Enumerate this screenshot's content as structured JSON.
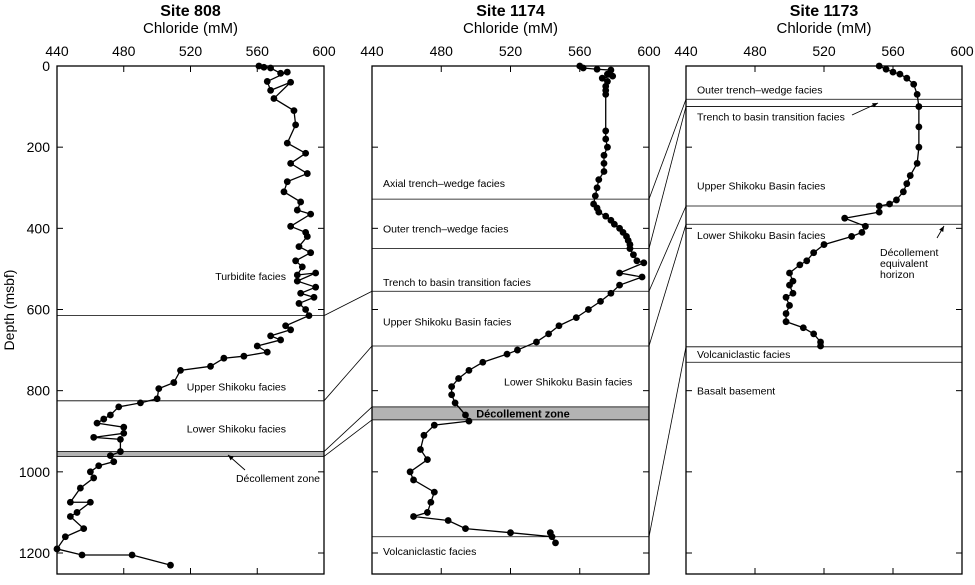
{
  "figure": {
    "ylabel": "Depth (msbf)",
    "y_ticks": [
      0,
      200,
      400,
      600,
      800,
      1000,
      1200
    ],
    "x_ticks": [
      440,
      480,
      520,
      560,
      600
    ]
  },
  "chart_data": [
    {
      "type": "line",
      "title": "Site 808",
      "xlabel": "Chloride (mM)",
      "ylabel": "Depth (msbf)",
      "xlim": [
        440,
        600
      ],
      "ylim": [
        1250,
        0
      ],
      "series": [
        {
          "values": [
            [
              561,
              0
            ],
            [
              564,
              3
            ],
            [
              568,
              5
            ],
            [
              574,
              18
            ],
            [
              578,
              15
            ],
            [
              566,
              38
            ],
            [
              568,
              60
            ],
            [
              580,
              40
            ],
            [
              570,
              80
            ],
            [
              582,
              110
            ],
            [
              583,
              145
            ],
            [
              578,
              190
            ],
            [
              589,
              215
            ],
            [
              580,
              240
            ],
            [
              590,
              265
            ],
            [
              578,
              285
            ],
            [
              576,
              310
            ],
            [
              586,
              335
            ],
            [
              584,
              355
            ],
            [
              592,
              365
            ],
            [
              580,
              395
            ],
            [
              589,
              410
            ],
            [
              590,
              420
            ],
            [
              585,
              445
            ],
            [
              592,
              460
            ],
            [
              583,
              480
            ],
            [
              587,
              495
            ],
            [
              584,
              515
            ],
            [
              595,
              510
            ],
            [
              584,
              530
            ],
            [
              595,
              545
            ],
            [
              586,
              560
            ],
            [
              594,
              570
            ],
            [
              585,
              585
            ],
            [
              589,
              600
            ],
            [
              591,
              615
            ],
            [
              577,
              640
            ],
            [
              580,
              650
            ],
            [
              568,
              665
            ],
            [
              574,
              675
            ],
            [
              560,
              690
            ],
            [
              566,
              705
            ],
            [
              552,
              715
            ],
            [
              540,
              720
            ],
            [
              532,
              740
            ],
            [
              514,
              750
            ],
            [
              510,
              780
            ],
            [
              501,
              795
            ],
            [
              500,
              820
            ],
            [
              490,
              830
            ],
            [
              477,
              840
            ],
            [
              472,
              860
            ],
            [
              468,
              870
            ],
            [
              464,
              880
            ],
            [
              480,
              890
            ],
            [
              480,
              905
            ],
            [
              462,
              915
            ],
            [
              478,
              920
            ],
            [
              478,
              950
            ],
            [
              472,
              960
            ],
            [
              474,
              975
            ],
            [
              465,
              985
            ],
            [
              460,
              1000
            ],
            [
              462,
              1015
            ],
            [
              454,
              1040
            ],
            [
              448,
              1075
            ],
            [
              460,
              1075
            ],
            [
              452,
              1100
            ],
            [
              448,
              1110
            ],
            [
              456,
              1140
            ],
            [
              445,
              1160
            ],
            [
              440,
              1190
            ],
            [
              455,
              1205
            ],
            [
              485,
              1205
            ],
            [
              508,
              1230
            ]
          ]
        }
      ],
      "facies": [
        {
          "label": "Turbidite facies",
          "depth": 518
        },
        {
          "label": "Upper Shikoku facies",
          "depth": 790
        },
        {
          "label": "Lower Shikoku facies",
          "depth": 893
        },
        {
          "label": "Décollement zone",
          "depth": 1015
        }
      ],
      "boundaries": [
        615,
        825
      ],
      "shaded": [
        950,
        962
      ]
    },
    {
      "type": "line",
      "title": "Site 1174",
      "xlabel": "Chloride (mM)",
      "ylabel": "Depth (msbf)",
      "xlim": [
        440,
        600
      ],
      "ylim": [
        1250,
        0
      ],
      "series": [
        {
          "values": [
            [
              560,
              0
            ],
            [
              562,
              5
            ],
            [
              570,
              8
            ],
            [
              578,
              10
            ],
            [
              576,
              20
            ],
            [
              579,
              25
            ],
            [
              573,
              30
            ],
            [
              576,
              38
            ],
            [
              575,
              50
            ],
            [
              575,
              60
            ],
            [
              575,
              70
            ],
            [
              575,
              160
            ],
            [
              575,
              180
            ],
            [
              576,
              200
            ],
            [
              574,
              220
            ],
            [
              574,
              240
            ],
            [
              574,
              260
            ],
            [
              571,
              280
            ],
            [
              570,
              300
            ],
            [
              569,
              320
            ],
            [
              568,
              340
            ],
            [
              570,
              350
            ],
            [
              571,
              360
            ],
            [
              575,
              370
            ],
            [
              578,
              380
            ],
            [
              580,
              390
            ],
            [
              583,
              400
            ],
            [
              585,
              410
            ],
            [
              587,
              420
            ],
            [
              588,
              430
            ],
            [
              589,
              440
            ],
            [
              589,
              450
            ],
            [
              591,
              465
            ],
            [
              593,
              480
            ],
            [
              597,
              485
            ],
            [
              583,
              510
            ],
            [
              596,
              520
            ],
            [
              583,
              540
            ],
            [
              578,
              560
            ],
            [
              572,
              580
            ],
            [
              565,
              600
            ],
            [
              558,
              620
            ],
            [
              548,
              640
            ],
            [
              542,
              660
            ],
            [
              535,
              680
            ],
            [
              524,
              700
            ],
            [
              518,
              710
            ],
            [
              504,
              730
            ],
            [
              496,
              750
            ],
            [
              490,
              770
            ],
            [
              486,
              790
            ],
            [
              486,
              810
            ],
            [
              488,
              830
            ],
            [
              494,
              860
            ],
            [
              496,
              875
            ],
            [
              476,
              885
            ],
            [
              470,
              910
            ],
            [
              468,
              945
            ],
            [
              472,
              970
            ],
            [
              462,
              1000
            ],
            [
              464,
              1020
            ],
            [
              476,
              1050
            ],
            [
              474,
              1075
            ],
            [
              472,
              1100
            ],
            [
              464,
              1110
            ],
            [
              484,
              1120
            ],
            [
              494,
              1140
            ],
            [
              520,
              1150
            ],
            [
              544,
              1160
            ],
            [
              546,
              1175
            ],
            [
              543,
              1150
            ]
          ]
        }
      ],
      "facies": [
        {
          "label": "Axial trench–wedge facies",
          "depth": 288
        },
        {
          "label": "Outer trench–wedge facies",
          "depth": 400
        },
        {
          "label": "Trench to basin transition facies",
          "depth": 532
        },
        {
          "label": "Upper Shikoku Basin facies",
          "depth": 630
        },
        {
          "label": "Lower Shikoku Basin facies",
          "depth": 778
        },
        {
          "label": "Décollement zone",
          "depth": 856,
          "bold": true
        },
        {
          "label": "Volcaniclastic facies",
          "depth": 1195
        }
      ],
      "boundaries": [
        328,
        450,
        555,
        690,
        1160
      ],
      "shaded": [
        840,
        872
      ]
    },
    {
      "type": "line",
      "title": "Site 1173",
      "xlabel": "Chloride (mM)",
      "ylabel": "Depth (msbf)",
      "xlim": [
        440,
        600
      ],
      "ylim": [
        1250,
        0
      ],
      "series": [
        {
          "values": [
            [
              552,
              0
            ],
            [
              556,
              8
            ],
            [
              560,
              15
            ],
            [
              564,
              20
            ],
            [
              568,
              30
            ],
            [
              572,
              45
            ],
            [
              574,
              70
            ],
            [
              575,
              100
            ],
            [
              575,
              150
            ],
            [
              575,
              200
            ],
            [
              574,
              240
            ],
            [
              570,
              270
            ],
            [
              568,
              290
            ],
            [
              566,
              310
            ],
            [
              562,
              330
            ],
            [
              558,
              340
            ],
            [
              552,
              345
            ],
            [
              552,
              360
            ],
            [
              532,
              375
            ],
            [
              544,
              395
            ],
            [
              542,
              410
            ],
            [
              536,
              420
            ],
            [
              520,
              440
            ],
            [
              514,
              460
            ],
            [
              510,
              480
            ],
            [
              506,
              490
            ],
            [
              500,
              510
            ],
            [
              502,
              530
            ],
            [
              500,
              540
            ],
            [
              502,
              560
            ],
            [
              498,
              570
            ],
            [
              500,
              590
            ],
            [
              498,
              610
            ],
            [
              498,
              630
            ],
            [
              508,
              645
            ],
            [
              514,
              660
            ],
            [
              518,
              680
            ],
            [
              518,
              690
            ]
          ]
        }
      ],
      "facies": [
        {
          "label": "Outer trench–wedge facies",
          "depth": 58
        },
        {
          "label": "Trench to basin transition facies",
          "depth": 125
        },
        {
          "label": "Upper Shikoku Basin facies",
          "depth": 295
        },
        {
          "label": "Lower Shikoku Basin facies",
          "depth": 417
        },
        {
          "label": "Décollement",
          "depth": 458
        },
        {
          "label": "equivalent",
          "depth": 485
        },
        {
          "label": "horizon",
          "depth": 512
        },
        {
          "label": "Volcaniclastic facies",
          "depth": 710
        },
        {
          "label": "Basalt basement",
          "depth": 800
        }
      ],
      "boundaries": [
        82,
        100,
        345,
        390,
        692,
        730
      ]
    }
  ]
}
